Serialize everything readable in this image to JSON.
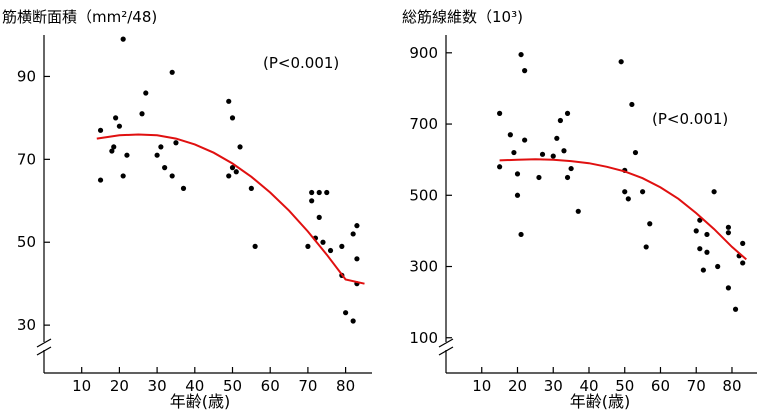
{
  "chart_data": [
    {
      "type": "scatter",
      "title": "筋横断面積（mm²/48)",
      "xlabel": "年齢(歳)",
      "ylabel": "",
      "annotation": "(P<0.001)",
      "xlim": [
        0,
        87
      ],
      "ylim": [
        24,
        100
      ],
      "xticks": [
        10,
        20,
        30,
        40,
        50,
        60,
        70,
        80
      ],
      "yticks": [
        30,
        50,
        70,
        90
      ],
      "axis_break": true,
      "fit_color": "#e01010",
      "point_color": "#000000",
      "points": [
        {
          "x": 15,
          "y": 77
        },
        {
          "x": 15,
          "y": 65
        },
        {
          "x": 18,
          "y": 72
        },
        {
          "x": 18.5,
          "y": 73
        },
        {
          "x": 19,
          "y": 80
        },
        {
          "x": 20,
          "y": 78
        },
        {
          "x": 21,
          "y": 99
        },
        {
          "x": 21,
          "y": 66
        },
        {
          "x": 22,
          "y": 71
        },
        {
          "x": 26,
          "y": 81
        },
        {
          "x": 27,
          "y": 86
        },
        {
          "x": 30,
          "y": 71
        },
        {
          "x": 31,
          "y": 73
        },
        {
          "x": 32,
          "y": 68
        },
        {
          "x": 34,
          "y": 91
        },
        {
          "x": 34,
          "y": 66
        },
        {
          "x": 35,
          "y": 74
        },
        {
          "x": 37,
          "y": 63
        },
        {
          "x": 49,
          "y": 84
        },
        {
          "x": 49,
          "y": 66
        },
        {
          "x": 50,
          "y": 80
        },
        {
          "x": 50,
          "y": 68
        },
        {
          "x": 51,
          "y": 67
        },
        {
          "x": 52,
          "y": 73
        },
        {
          "x": 55,
          "y": 63
        },
        {
          "x": 56,
          "y": 49
        },
        {
          "x": 70,
          "y": 49
        },
        {
          "x": 71,
          "y": 62
        },
        {
          "x": 71,
          "y": 60
        },
        {
          "x": 72,
          "y": 51
        },
        {
          "x": 73,
          "y": 62
        },
        {
          "x": 73,
          "y": 56
        },
        {
          "x": 74,
          "y": 50
        },
        {
          "x": 75,
          "y": 62
        },
        {
          "x": 76,
          "y": 48
        },
        {
          "x": 79,
          "y": 49
        },
        {
          "x": 79,
          "y": 42
        },
        {
          "x": 80,
          "y": 33
        },
        {
          "x": 82,
          "y": 31
        },
        {
          "x": 82,
          "y": 52
        },
        {
          "x": 83,
          "y": 54
        },
        {
          "x": 83,
          "y": 40
        },
        {
          "x": 83,
          "y": 46
        }
      ],
      "fit": {
        "x": [
          14,
          20,
          25,
          30,
          35,
          40,
          45,
          50,
          55,
          60,
          65,
          70,
          75,
          80,
          85
        ],
        "y": [
          75,
          75.8,
          76,
          75.8,
          75,
          73.6,
          71.6,
          69,
          65.8,
          62,
          57.6,
          52.6,
          47,
          41,
          40
        ]
      }
    },
    {
      "type": "scatter",
      "title": "総筋線維数（10³)",
      "xlabel": "年齢(歳)",
      "ylabel": "",
      "annotation": "(P<0.001)",
      "xlim": [
        0,
        87
      ],
      "ylim": [
        60,
        950
      ],
      "xticks": [
        10,
        20,
        30,
        40,
        50,
        60,
        70,
        80
      ],
      "yticks": [
        100,
        300,
        500,
        700,
        900
      ],
      "axis_break": true,
      "fit_color": "#e01010",
      "point_color": "#000000",
      "points": [
        {
          "x": 15,
          "y": 730
        },
        {
          "x": 15,
          "y": 580
        },
        {
          "x": 18,
          "y": 670
        },
        {
          "x": 19,
          "y": 620
        },
        {
          "x": 20,
          "y": 560
        },
        {
          "x": 20,
          "y": 500
        },
        {
          "x": 21,
          "y": 895
        },
        {
          "x": 21,
          "y": 390
        },
        {
          "x": 22,
          "y": 850
        },
        {
          "x": 22,
          "y": 655
        },
        {
          "x": 26,
          "y": 550
        },
        {
          "x": 27,
          "y": 615
        },
        {
          "x": 30,
          "y": 610
        },
        {
          "x": 31,
          "y": 660
        },
        {
          "x": 32,
          "y": 710
        },
        {
          "x": 33,
          "y": 625
        },
        {
          "x": 34,
          "y": 730
        },
        {
          "x": 34,
          "y": 550
        },
        {
          "x": 35,
          "y": 575
        },
        {
          "x": 37,
          "y": 455
        },
        {
          "x": 49,
          "y": 875
        },
        {
          "x": 50,
          "y": 570
        },
        {
          "x": 50,
          "y": 510
        },
        {
          "x": 51,
          "y": 490
        },
        {
          "x": 52,
          "y": 755
        },
        {
          "x": 53,
          "y": 620
        },
        {
          "x": 55,
          "y": 510
        },
        {
          "x": 56,
          "y": 355
        },
        {
          "x": 57,
          "y": 420
        },
        {
          "x": 70,
          "y": 400
        },
        {
          "x": 71,
          "y": 430
        },
        {
          "x": 71,
          "y": 350
        },
        {
          "x": 72,
          "y": 290
        },
        {
          "x": 73,
          "y": 340
        },
        {
          "x": 73,
          "y": 390
        },
        {
          "x": 75,
          "y": 510
        },
        {
          "x": 76,
          "y": 300
        },
        {
          "x": 79,
          "y": 410
        },
        {
          "x": 79,
          "y": 395
        },
        {
          "x": 79,
          "y": 240
        },
        {
          "x": 81,
          "y": 180
        },
        {
          "x": 82,
          "y": 330
        },
        {
          "x": 83,
          "y": 310
        },
        {
          "x": 83,
          "y": 365
        }
      ],
      "fit": {
        "x": [
          15,
          20,
          25,
          30,
          35,
          40,
          45,
          50,
          55,
          60,
          65,
          70,
          75,
          80,
          84
        ],
        "y": [
          598,
          600,
          601,
          600,
          596,
          590,
          580,
          567,
          548,
          522,
          490,
          450,
          405,
          355,
          320
        ]
      }
    }
  ]
}
